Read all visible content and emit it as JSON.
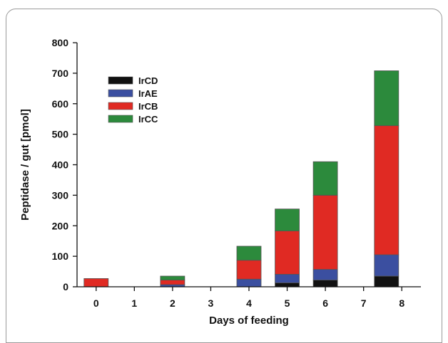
{
  "chart_data": {
    "type": "bar",
    "stacked": true,
    "xlabel": "Days of feeding",
    "ylabel": "Peptidase / gut [pmol]",
    "xlim": [
      -0.5,
      8.5
    ],
    "ylim": [
      0,
      800
    ],
    "xticks": [
      0,
      1,
      2,
      3,
      4,
      5,
      6,
      7,
      8
    ],
    "yticks": [
      0,
      100,
      200,
      300,
      400,
      500,
      600,
      700,
      800
    ],
    "x": [
      0,
      2,
      4,
      5,
      6,
      7.6
    ],
    "series": [
      {
        "name": "IrCD",
        "color": "#111111",
        "values": [
          0,
          0,
          0,
          13,
          22,
          35
        ]
      },
      {
        "name": "IrAE",
        "color": "#3b4fa0",
        "values": [
          0,
          7,
          25,
          28,
          35,
          70
        ]
      },
      {
        "name": "IrCB",
        "color": "#e02a23",
        "values": [
          27,
          15,
          62,
          142,
          243,
          423
        ]
      },
      {
        "name": "IrCC",
        "color": "#2c8a3c",
        "values": [
          0,
          13,
          46,
          72,
          110,
          180
        ]
      }
    ],
    "legend": "top-left",
    "grid": false
  }
}
